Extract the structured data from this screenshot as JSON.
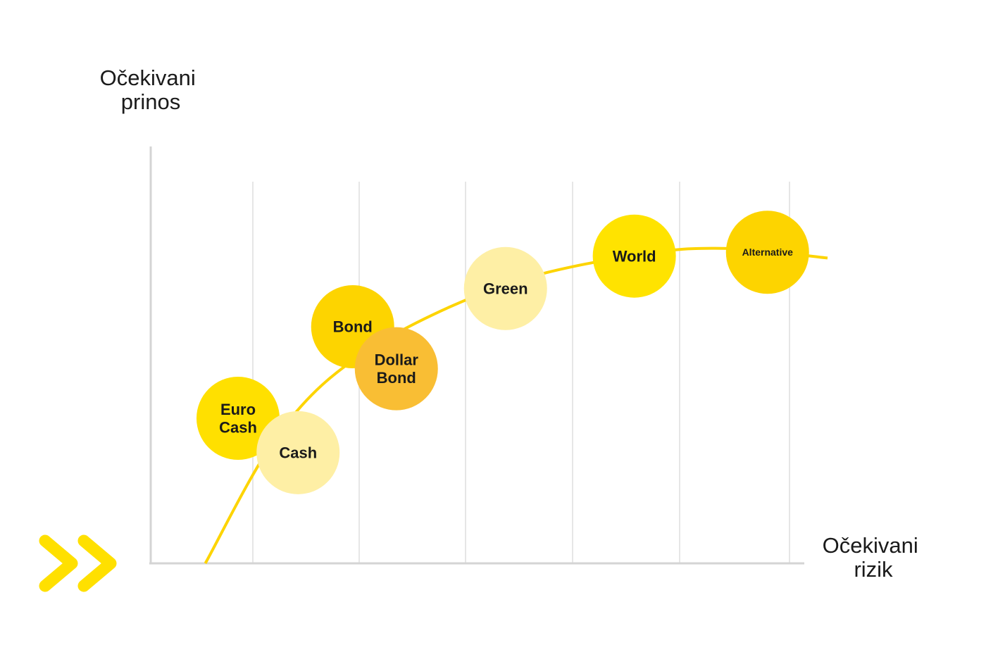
{
  "chart_data": {
    "type": "scatter",
    "title": "",
    "ylabel_lines": [
      "Očekivani",
      "prinos"
    ],
    "xlabel_lines": [
      "Očekivani",
      "rizik"
    ],
    "grid": true,
    "xlim": [
      0,
      6
    ],
    "ylim": [
      0,
      10
    ],
    "points": [
      {
        "label_lines": [
          "Euro",
          "Cash"
        ],
        "x": 0.8,
        "y": 3.8,
        "color": "#FFE000"
      },
      {
        "label_lines": [
          "Cash"
        ],
        "x": 1.35,
        "y": 2.9,
        "color": "#FEEFA5"
      },
      {
        "label_lines": [
          "Bond"
        ],
        "x": 1.85,
        "y": 6.2,
        "color": "#FDD400"
      },
      {
        "label_lines": [
          "Dollar",
          "Bond"
        ],
        "x": 2.25,
        "y": 5.1,
        "color": "#F9BE34"
      },
      {
        "label_lines": [
          "Green"
        ],
        "x": 3.25,
        "y": 7.2,
        "color": "#FEEFA5"
      },
      {
        "label_lines": [
          "World"
        ],
        "x": 4.43,
        "y": 8.05,
        "color": "#FFE300"
      },
      {
        "label_lines": [
          "Alternative"
        ],
        "x": 5.65,
        "y": 8.15,
        "color": "#FDD400"
      }
    ],
    "curve": {
      "color": "#FDD400",
      "points": [
        [
          0.5,
          0
        ],
        [
          1.2,
          3.5
        ],
        [
          2.0,
          5.6
        ],
        [
          3.25,
          7.3
        ],
        [
          4.5,
          8.1
        ],
        [
          5.3,
          8.25
        ],
        [
          6.2,
          8.0
        ]
      ]
    }
  },
  "colors": {
    "axis": "#d4d4d4",
    "grid": "#e6e6e6",
    "text": "#1a1a1a",
    "accent": "#FFE000"
  },
  "decoration": {
    "icon": "double-chevron-icon"
  }
}
